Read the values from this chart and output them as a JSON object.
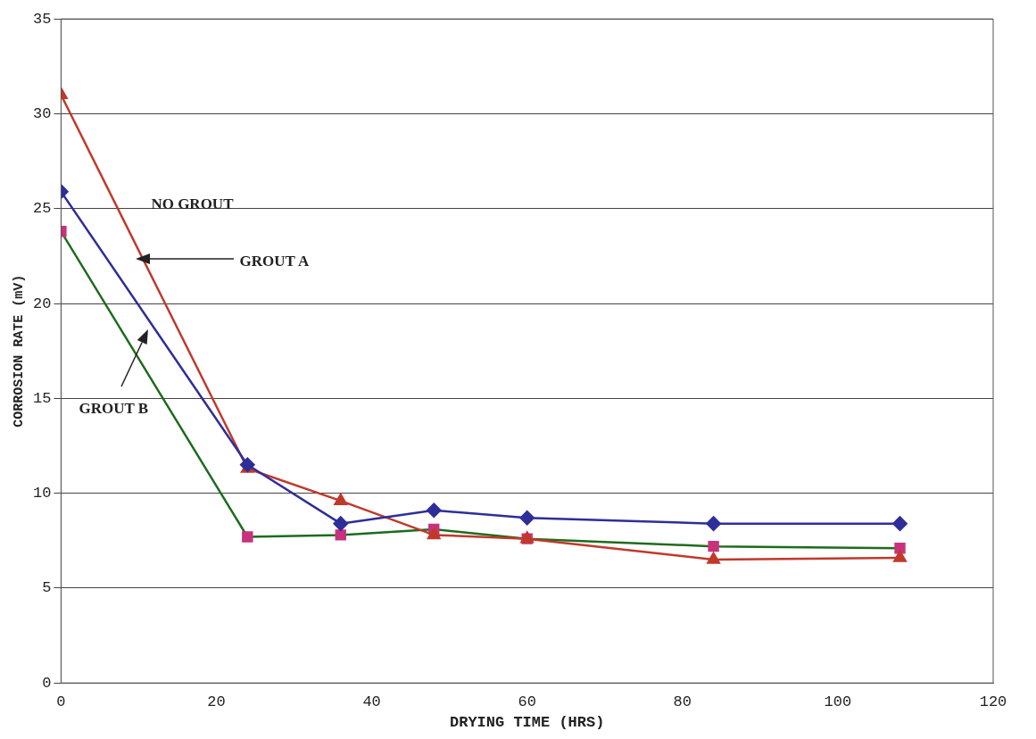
{
  "chart_data": {
    "type": "line",
    "xlabel": "DRYING TIME (HRS)",
    "ylabel": "CORROSION RATE (mV)",
    "x": [
      0,
      24,
      36,
      48,
      60,
      84,
      108
    ],
    "series": [
      {
        "color": "#2e2e9a",
        "marker": "diamond",
        "values": [
          25.9,
          11.5,
          8.4,
          9.1,
          8.7,
          8.4,
          8.4
        ]
      },
      {
        "color": "#c0392b",
        "marker": "triangle",
        "values": [
          31.0,
          11.3,
          9.6,
          7.8,
          7.6,
          6.5,
          6.6
        ]
      },
      {
        "color": "#1e6b1e",
        "colors": [
          "#c8327d",
          "#c8327d",
          "#c8327d",
          "#c8327d",
          "#c8327d",
          "#c8327d",
          "#c8327d"
        ],
        "marker": "square",
        "values": [
          23.8,
          7.7,
          7.8,
          8.1,
          7.6,
          7.2,
          7.1
        ]
      }
    ],
    "xlim": [
      0,
      120
    ],
    "xticks": [
      0,
      20,
      40,
      60,
      80,
      100,
      120
    ],
    "ylim": [
      0,
      35
    ],
    "yticks": [
      0,
      5,
      10,
      15,
      20,
      25,
      30,
      35
    ],
    "grid": "y",
    "legend": false,
    "line_style": "solid",
    "annotations": [
      "NO GROUT",
      "GROUT A",
      "GROUT B"
    ]
  }
}
